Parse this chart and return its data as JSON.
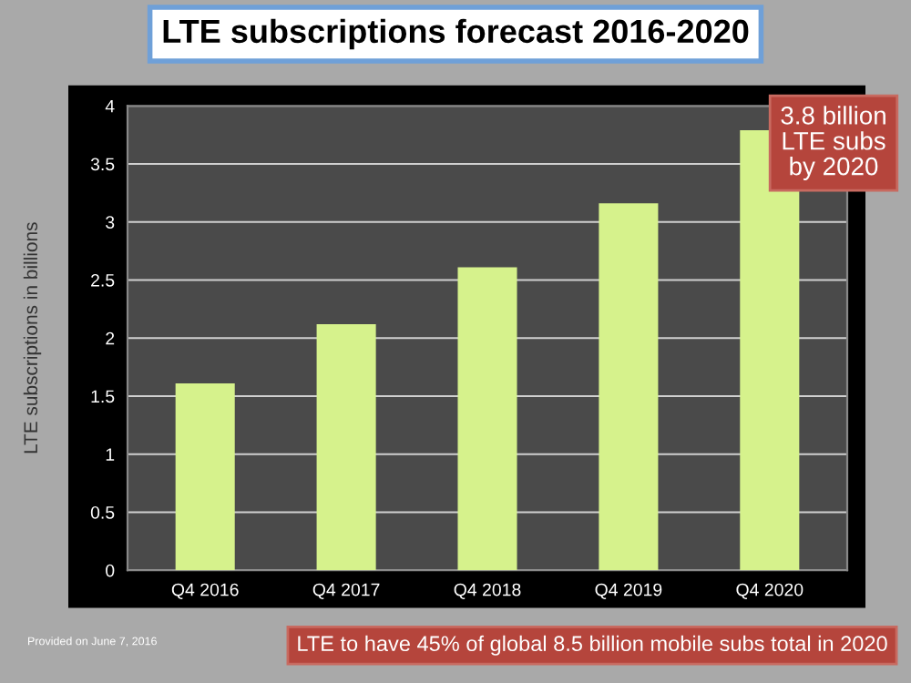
{
  "chart_data": {
    "type": "bar",
    "title": "LTE subscriptions forecast 2016-2020",
    "ylabel": "LTE subscriptions in billions",
    "categories": [
      "Q4 2016",
      "Q4 2017",
      "Q4 2018",
      "Q4 2019",
      "Q4 2020"
    ],
    "values": [
      1.61,
      2.12,
      2.61,
      3.16,
      3.79
    ],
    "color": "#d6f28c",
    "ylim": [
      0,
      4
    ],
    "yticks": [
      0,
      0.5,
      1,
      1.5,
      2,
      2.5,
      3,
      3.5,
      4
    ],
    "grid": "y",
    "annotations": [
      "3.8 billion\nLTE subs\nby 2020",
      "LTE to have 45% of global 8.5 billion mobile subs total in 2020",
      "Provided on June 7, 2016"
    ]
  }
}
